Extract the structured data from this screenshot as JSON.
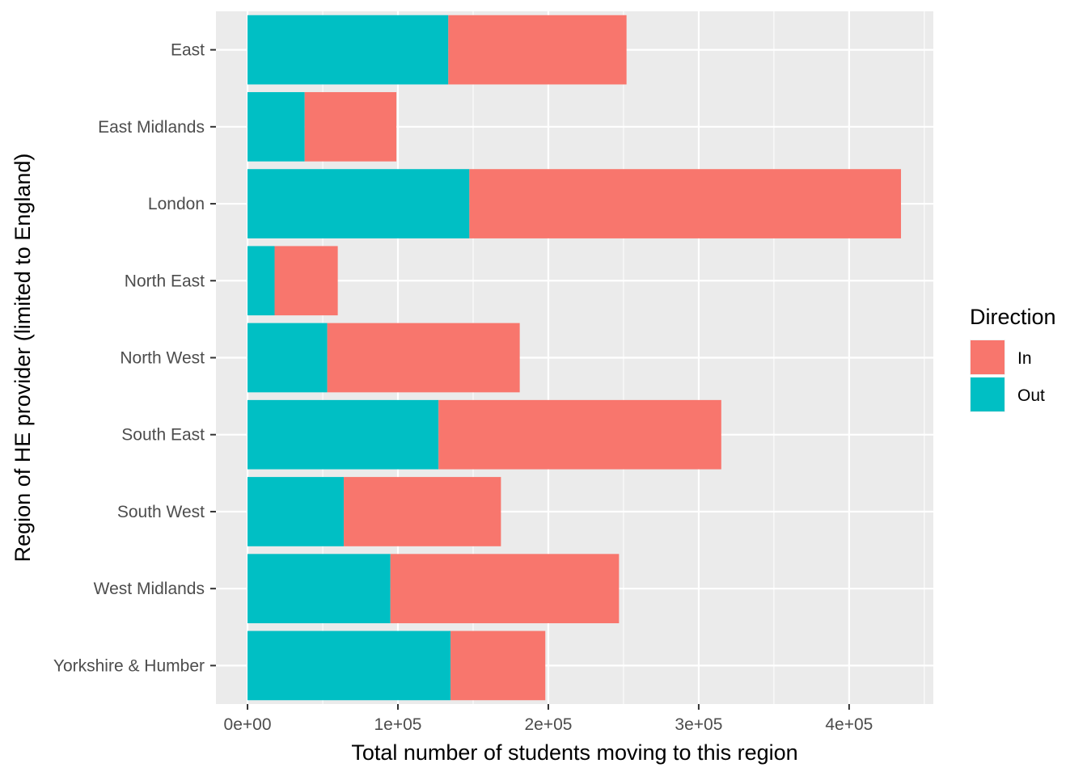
{
  "chart_data": {
    "type": "bar",
    "orientation": "horizontal",
    "stacked": true,
    "categories": [
      "East",
      "East Midlands",
      "London",
      "North East",
      "North West",
      "South East",
      "South West",
      "West Midlands",
      "Yorkshire & Humber"
    ],
    "series": [
      {
        "name": "Out",
        "color": "#00BFC4",
        "values": [
          133500,
          38000,
          147500,
          18000,
          53000,
          127000,
          64000,
          95000,
          135000
        ]
      },
      {
        "name": "In",
        "color": "#F8766D",
        "values": [
          118500,
          61000,
          287000,
          42000,
          128000,
          188000,
          104500,
          152000,
          63000
        ]
      }
    ],
    "xlabel": "Total number of students moving to this region",
    "ylabel": "Region of HE provider (limited to England)",
    "xlim": [
      -21000,
      456000
    ],
    "x_ticks": [
      0,
      100000,
      200000,
      300000,
      400000
    ],
    "x_tick_labels": [
      "0e+00",
      "1e+05",
      "2e+05",
      "3e+05",
      "4e+05"
    ],
    "grid": true,
    "legend": {
      "title": "Direction",
      "position": "right",
      "items": [
        {
          "name": "In",
          "color": "#F8766D"
        },
        {
          "name": "Out",
          "color": "#00BFC4"
        }
      ]
    }
  }
}
